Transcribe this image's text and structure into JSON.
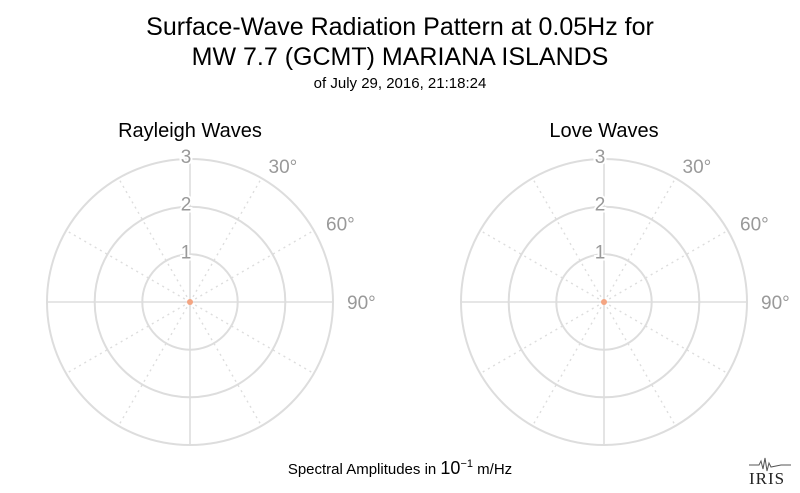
{
  "title_line1": "Surface-Wave Radiation Pattern at 0.05Hz for",
  "title_line2": "MW 7.7 (GCMT) MARIANA ISLANDS",
  "subtitle": "of July 29, 2016, 21:18:24",
  "footer": {
    "prefix": "Spectral Amplitudes in",
    "base": "10",
    "exponent": "−1",
    "unit": "m/Hz"
  },
  "logo_text": "IRIS",
  "colors": {
    "grid": "#dddddd",
    "tick_text": "#999999",
    "point": "#f4a582"
  },
  "chart_data": [
    {
      "type": "scatter",
      "polar": true,
      "title": "Rayleigh Waves",
      "radial_ticks": [
        "1",
        "2",
        "3"
      ],
      "radial_range": [
        0,
        3
      ],
      "angular_ticks": [
        "30°",
        "60°",
        "90°"
      ],
      "angular_grid_step_deg": 30,
      "points": [
        {
          "theta_deg": 0,
          "r": 0
        }
      ]
    },
    {
      "type": "scatter",
      "polar": true,
      "title": "Love Waves",
      "radial_ticks": [
        "1",
        "2",
        "3"
      ],
      "radial_range": [
        0,
        3
      ],
      "angular_ticks": [
        "30°",
        "60°",
        "90°"
      ],
      "angular_grid_step_deg": 30,
      "points": [
        {
          "theta_deg": 0,
          "r": 0
        }
      ]
    }
  ]
}
